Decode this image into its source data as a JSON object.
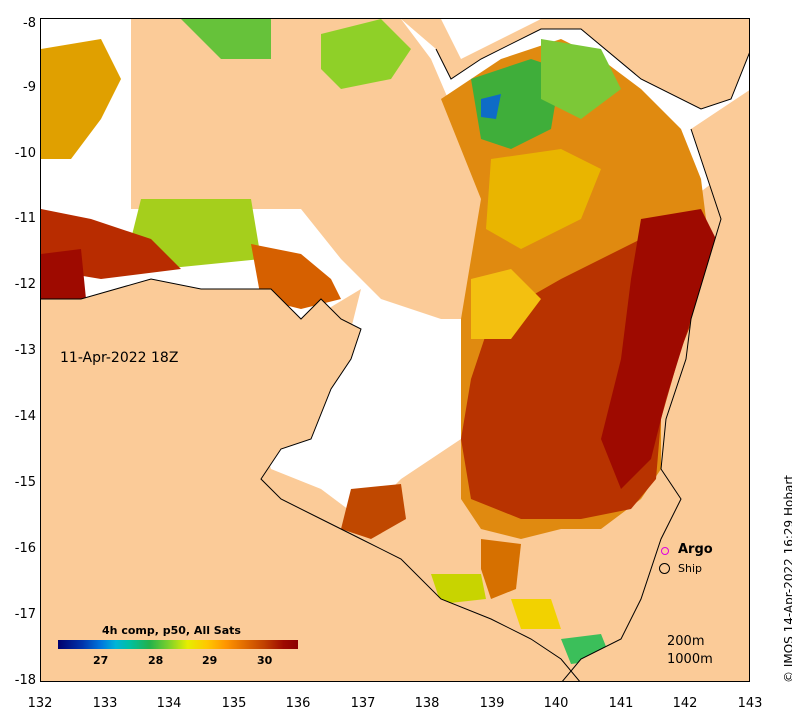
{
  "map": {
    "date_label": "11-Apr-2022 18Z",
    "product_label": "4h comp, p50, All Sats",
    "credit": "© IMOS 14-Apr-2022 16:29 Hobart",
    "x_axis_ticks": [
      "132",
      "133",
      "134",
      "135",
      "136",
      "137",
      "138",
      "139",
      "140",
      "141",
      "142",
      "143"
    ],
    "y_axis_ticks": [
      "-8",
      "-9",
      "-10",
      "-11",
      "-12",
      "-13",
      "-14",
      "-15",
      "-16",
      "-17",
      "-18"
    ],
    "colorbar_ticks": [
      "27",
      "28",
      "29",
      "30"
    ],
    "legend": {
      "argo": "Argo",
      "ship": "Ship"
    },
    "contours": {
      "shallow": "200m",
      "deep": "1000m"
    },
    "colors": {
      "land": "#fbcb98",
      "no_data": "#ffffff",
      "hot": "#9e0a00",
      "warm": "#e07a00",
      "mid": "#f0c800",
      "cool": "#22b14c",
      "cold": "#0033aa",
      "argo": "#e000e0"
    }
  }
}
